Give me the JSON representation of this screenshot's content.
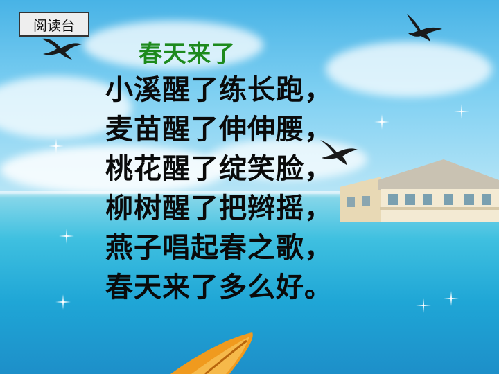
{
  "tag": {
    "label": "阅读台"
  },
  "poem": {
    "title": "春天来了",
    "lines": [
      "小溪醒了练长跑，",
      "麦苗醒了伸伸腰，",
      "桃花醒了绽笑脸，",
      "柳树醒了把辫摇，",
      "燕子唱起春之歌，",
      "春天来了多么好。"
    ]
  },
  "colors": {
    "title": "#1d8a1d",
    "text": "#0a0a0a",
    "sky": "#48b3e6",
    "sea": "#1fa6d6"
  },
  "icons": [
    "swallow-bird-icon",
    "boat-icon",
    "house-icon",
    "sparkle-icon"
  ]
}
